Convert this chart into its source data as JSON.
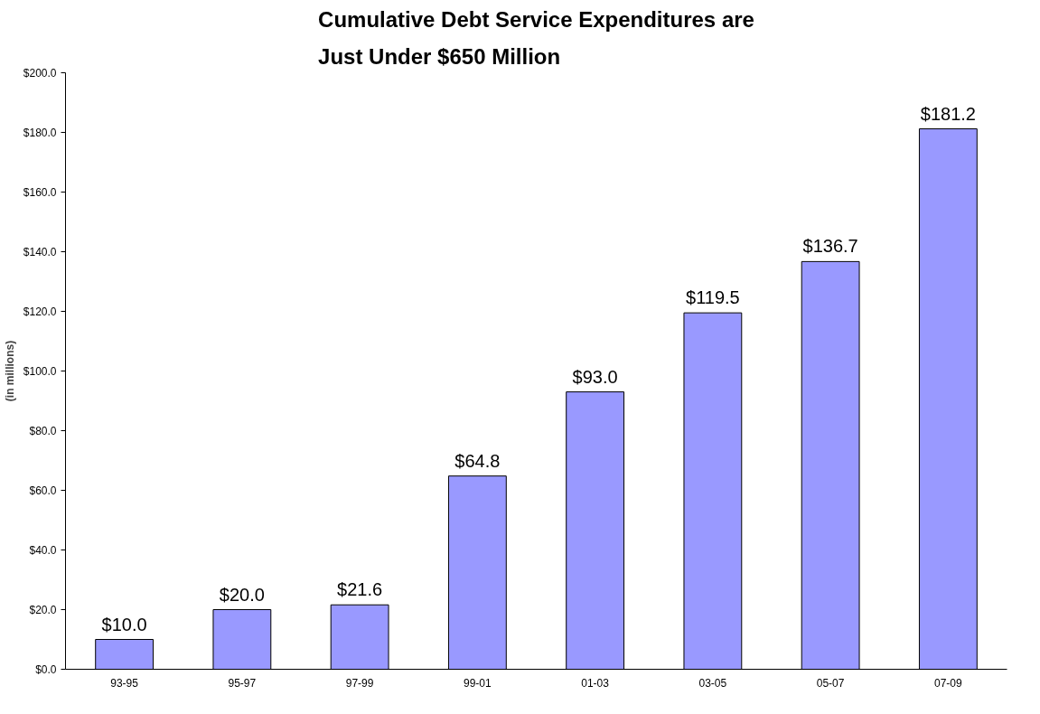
{
  "chart_data": {
    "type": "bar",
    "title": "Cumulative Debt Service Expenditures are\nJust Under $650 Million",
    "ylabel": "(in millions)",
    "categories": [
      "93-95",
      "95-97",
      "97-99",
      "99-01",
      "01-03",
      "03-05",
      "05-07",
      "07-09"
    ],
    "values": [
      10.0,
      20.0,
      21.6,
      64.8,
      93.0,
      119.5,
      136.7,
      181.2
    ],
    "value_labels": [
      "$10.0",
      "$20.0",
      "$21.6",
      "$64.8",
      "$93.0",
      "$119.5",
      "$136.7",
      "$181.2"
    ],
    "color": "#9999ff",
    "ylim": [
      0,
      200
    ],
    "yticks": [
      {
        "value": 0,
        "label": "$0.0"
      },
      {
        "value": 20,
        "label": "$20.0"
      },
      {
        "value": 40,
        "label": "$40.0"
      },
      {
        "value": 60,
        "label": "$60.0"
      },
      {
        "value": 80,
        "label": "$80.0"
      },
      {
        "value": 100,
        "label": "$100.0"
      },
      {
        "value": 120,
        "label": "$120.0"
      },
      {
        "value": 140,
        "label": "$140.0"
      },
      {
        "value": 160,
        "label": "$160.0"
      },
      {
        "value": 180,
        "label": "$180.0"
      },
      {
        "value": 200,
        "label": "$200.0"
      }
    ],
    "grid": false
  }
}
